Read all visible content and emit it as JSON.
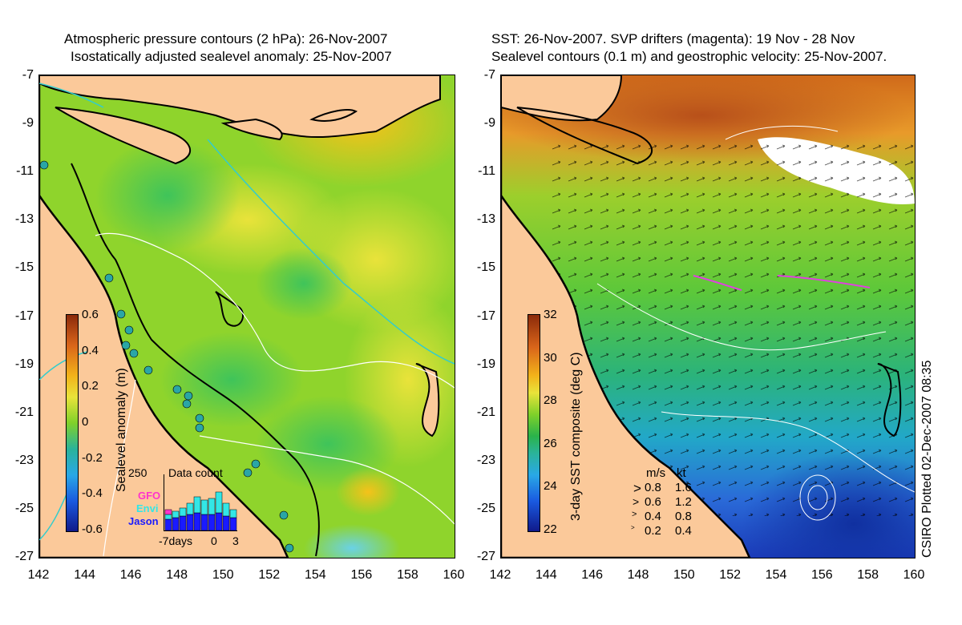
{
  "left_panel": {
    "title_line1": "Atmospheric pressure contours (2 hPa): 26-Nov-2007",
    "title_line2": "Isostatically adjusted sealevel anomaly: 25-Nov-2007",
    "colorbar": {
      "label": "Sealevel anomaly (m)",
      "ticks": [
        "0.6",
        "0.4",
        "0.2",
        "0",
        "-0.2",
        "-0.4",
        "-0.6"
      ],
      "range": [
        -0.6,
        0.6
      ]
    },
    "data_count": {
      "title": "Data count",
      "max_label": "250",
      "x_label_start": "-7days",
      "x_label_mid": "0",
      "x_label_end": "3",
      "satellites": [
        {
          "name": "GFO",
          "color": "#ff33cc"
        },
        {
          "name": "Envi",
          "color": "#33e6e6"
        },
        {
          "name": "Jason",
          "color": "#1a1aff"
        }
      ]
    }
  },
  "right_panel": {
    "title_line1": "SST: 26-Nov-2007. SVP drifters (magenta): 19 Nov - 28 Nov",
    "title_line2": "Sealevel contours (0.1 m) and geostrophic velocity: 25-Nov-2007.",
    "colorbar": {
      "label": "3-day SST composite (deg C)",
      "ticks": [
        "32",
        "30",
        "28",
        "26",
        "24",
        "22"
      ],
      "range": [
        22,
        32
      ]
    },
    "velocity_legend": {
      "header_ms": "m/s",
      "header_kt": "kt",
      "rows": [
        {
          "ms": "0.8",
          "kt": "1.6"
        },
        {
          "ms": "0.6",
          "kt": "1.2"
        },
        {
          "ms": "0.4",
          "kt": "0.8"
        },
        {
          "ms": "0.2",
          "kt": "0.4"
        }
      ]
    },
    "credit": "CSIRO Plotted 02-Dec-2007 08:35"
  },
  "axes": {
    "lat_ticks": [
      "-7",
      "-9",
      "-11",
      "-13",
      "-15",
      "-17",
      "-19",
      "-21",
      "-23",
      "-25",
      "-27"
    ],
    "lon_ticks": [
      "142",
      "144",
      "146",
      "148",
      "150",
      "152",
      "154",
      "156",
      "158",
      "160"
    ],
    "lat_range": [
      -27,
      -7
    ],
    "lon_range": [
      142,
      160
    ]
  },
  "colors": {
    "land": "#fbc99a",
    "coast": "#000000",
    "sst_warm": "#e08a1f",
    "sst_cool": "#1f3fc8",
    "anomaly_base": "#7fd12a",
    "contour": "#ffffff",
    "pressure_contour": "#33cccc"
  }
}
